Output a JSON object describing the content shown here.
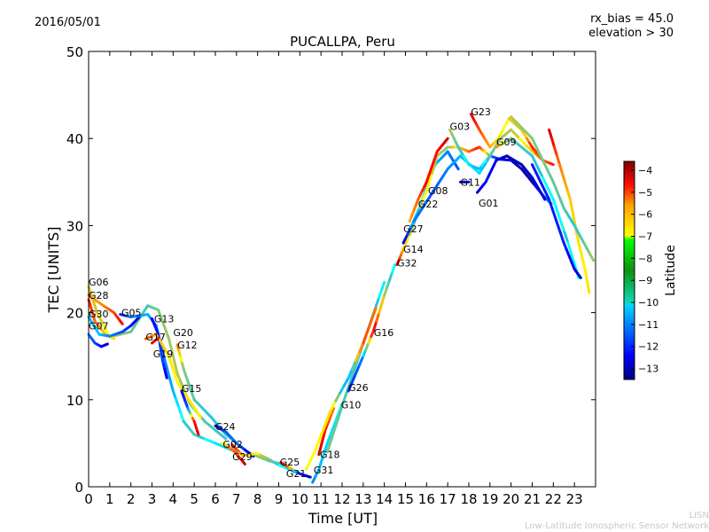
{
  "header": {
    "date": "2016/05/01",
    "rx_bias": "rx_bias = 45.0",
    "elevation": "elevation > 30"
  },
  "footer": {
    "org_short": "LISN",
    "org_long": "Low-Latitude Ionospheric Sensor Network"
  },
  "chart_data": {
    "type": "line",
    "title": "PUCALLPA, Peru",
    "xlabel": "Time [UT]",
    "ylabel": "TEC [UNITS]",
    "xlim": [
      0,
      24
    ],
    "ylim": [
      0,
      50
    ],
    "xticks": [
      0,
      1,
      2,
      3,
      4,
      5,
      6,
      7,
      8,
      9,
      10,
      11,
      12,
      13,
      14,
      15,
      16,
      17,
      18,
      19,
      20,
      21,
      22,
      23
    ],
    "yticks": [
      0,
      10,
      20,
      30,
      40,
      50
    ],
    "colorbar": {
      "label": "Latitude",
      "range": [
        -13.5,
        -3.6
      ],
      "ticks": [
        -4,
        -5,
        -6,
        -7,
        -8,
        -9,
        -10,
        -11,
        -12,
        -13
      ]
    },
    "labels": [
      {
        "text": "G06",
        "t": 0,
        "tec": 23.5
      },
      {
        "text": "G28",
        "t": 0,
        "tec": 22.0
      },
      {
        "text": "G30",
        "t": 0,
        "tec": 21.2
      },
      {
        "text": "G07",
        "t": 0,
        "tec": 18.5
      },
      {
        "text": "G05",
        "t": 1.55,
        "tec": 20.0
      },
      {
        "text": "G13",
        "t": 3.1,
        "tec": 19.3
      },
      {
        "text": "G17",
        "t": 2.7,
        "tec": 17.2
      },
      {
        "text": "G19",
        "t": 3.05,
        "tec": 16.6
      },
      {
        "text": "G20",
        "t": 4.0,
        "tec": 16.4
      },
      {
        "text": "G12",
        "t": 4.2,
        "tec": 16.3
      },
      {
        "text": "G15",
        "t": 4.4,
        "tec": 11.3
      },
      {
        "text": "G24",
        "t": 6.0,
        "tec": 6.9
      },
      {
        "text": "G02",
        "t": 6.35,
        "tec": 4.9
      },
      {
        "text": "G29",
        "t": 6.8,
        "tec": 4.8
      },
      {
        "text": "G25",
        "t": 9.05,
        "tec": 2.85
      },
      {
        "text": "G21",
        "t": 9.35,
        "tec": 2.85
      },
      {
        "text": "G31",
        "t": 10.65,
        "tec": 0.6
      },
      {
        "text": "G18",
        "t": 10.95,
        "tec": 3.7
      },
      {
        "text": "G10",
        "t": 11.95,
        "tec": 9.4
      },
      {
        "text": "G26",
        "t": 12.3,
        "tec": 11.4
      },
      {
        "text": "G16",
        "t": 13.5,
        "tec": 17.7
      },
      {
        "text": "G32",
        "t": 14.6,
        "tec": 25.7
      },
      {
        "text": "G14",
        "t": 14.9,
        "tec": 27.3
      },
      {
        "text": "G27",
        "t": 14.9,
        "tec": 28.3
      },
      {
        "text": "G22",
        "t": 15.6,
        "tec": 32.5
      },
      {
        "text": "G08",
        "t": 16.07,
        "tec": 32.7
      },
      {
        "text": "G11",
        "t": 17.6,
        "tec": 35.0
      },
      {
        "text": "G01",
        "t": 18.46,
        "tec": 33.9
      },
      {
        "text": "G03",
        "t": 17.1,
        "tec": 41.4
      },
      {
        "text": "G23",
        "t": 18.1,
        "tec": 43.1
      },
      {
        "text": "G09",
        "t": 19.3,
        "tec": 39.6
      }
    ],
    "tracks": [
      [
        [
          0,
          23,
          -7.6
        ],
        [
          0.4,
          20,
          -7.8
        ],
        [
          1,
          17.2,
          -7.3
        ],
        [
          1.5,
          17.5,
          -8.2
        ],
        [
          2,
          17.8,
          -8.8
        ],
        [
          2.8,
          20.8,
          -9.2
        ],
        [
          3.3,
          20.3,
          -8.6
        ],
        [
          3.8,
          17,
          -8.2
        ],
        [
          4.2,
          13,
          -8
        ],
        [
          4.8,
          9.5,
          -8.5
        ],
        [
          5.5,
          7.5,
          -9
        ],
        [
          6.5,
          5.5,
          -9.3
        ]
      ],
      [
        [
          0,
          22,
          -6.5
        ],
        [
          0.7,
          20.8,
          -6.2
        ],
        [
          1.2,
          20,
          -5.5
        ],
        [
          1.6,
          18.7,
          -4.8
        ]
      ],
      [
        [
          0,
          21.5,
          -5
        ],
        [
          0.3,
          19,
          -5.8
        ],
        [
          0.8,
          17.5,
          -6.8
        ],
        [
          1.2,
          17,
          -7
        ]
      ],
      [
        [
          0,
          19.5,
          -10.5
        ],
        [
          0.5,
          17.5,
          -10.3
        ],
        [
          1,
          17.3,
          -11
        ],
        [
          1.6,
          17.8,
          -11.5
        ],
        [
          2,
          18.5,
          -12
        ],
        [
          2.4,
          19.5,
          -12.8
        ]
      ],
      [
        [
          0,
          17.5,
          -11
        ],
        [
          0.3,
          16.5,
          -11.5
        ],
        [
          0.6,
          16.1,
          -12.2
        ],
        [
          0.9,
          16.4,
          -12.8
        ]
      ],
      [
        [
          1.5,
          19.8,
          -12
        ],
        [
          2,
          19.5,
          -11.2
        ],
        [
          2.8,
          19.8,
          -10.5
        ],
        [
          3.2,
          18.5,
          -11
        ],
        [
          3.5,
          15.5,
          -11.2
        ],
        [
          4,
          11,
          -10.5
        ],
        [
          4.5,
          7.5,
          -9.5
        ],
        [
          5,
          6,
          -9
        ],
        [
          6,
          5,
          -10
        ],
        [
          7,
          4,
          -10.5
        ]
      ],
      [
        [
          3,
          19.3,
          -12.5
        ],
        [
          3.3,
          17.5,
          -12
        ],
        [
          3.5,
          14.5,
          -11.5
        ],
        [
          3.7,
          12.5,
          -12.8
        ]
      ],
      [
        [
          2.7,
          17,
          -5.5
        ],
        [
          3.2,
          17.5,
          -6.5
        ],
        [
          3.8,
          15,
          -7
        ],
        [
          4.2,
          12,
          -7.3
        ],
        [
          4.8,
          9.8,
          -7
        ],
        [
          5.3,
          8,
          -7.2
        ]
      ],
      [
        [
          3.0,
          16.5,
          -4.5
        ],
        [
          3.3,
          17.1,
          -5.2
        ]
      ],
      [
        [
          4.2,
          16.3,
          -5.8
        ],
        [
          4.5,
          13.5,
          -8.5
        ],
        [
          5,
          10,
          -9
        ],
        [
          5.8,
          8,
          -9.5
        ],
        [
          6.5,
          6,
          -9.3
        ],
        [
          7.5,
          4,
          -8.8
        ],
        [
          8.5,
          3,
          -8.5
        ],
        [
          9.3,
          2.5,
          -9
        ]
      ],
      [
        [
          4.4,
          11,
          -12.5
        ],
        [
          4.7,
          9,
          -11.5
        ],
        [
          5,
          7.5,
          -5
        ],
        [
          5.2,
          6,
          -4.5
        ]
      ],
      [
        [
          6,
          7,
          -12.8
        ],
        [
          6.5,
          6.3,
          -11.5
        ],
        [
          7,
          5,
          -11
        ],
        [
          7.8,
          3.5,
          -12.8
        ]
      ],
      [
        [
          6.3,
          5,
          -7.5
        ],
        [
          6.8,
          4.3,
          -6
        ],
        [
          7.2,
          3.2,
          -5.2
        ],
        [
          7.4,
          2.6,
          -4.2
        ]
      ],
      [
        [
          6.8,
          4.8,
          -4.5
        ],
        [
          7.3,
          3.6,
          -6.5
        ],
        [
          8,
          3.8,
          -7.2
        ],
        [
          8.5,
          3.2,
          -8.5
        ],
        [
          9,
          2.5,
          -9.5
        ],
        [
          9.5,
          2,
          -10
        ],
        [
          10,
          1.5,
          -12
        ]
      ],
      [
        [
          9.1,
          2.8,
          -4.5
        ],
        [
          9.5,
          2.2,
          -5.8
        ],
        [
          10,
          1.5,
          -12
        ],
        [
          10.5,
          1.1,
          -12.8
        ]
      ],
      [
        [
          10.6,
          0.5,
          -11
        ],
        [
          10.9,
          2,
          -10.5
        ],
        [
          11.3,
          5,
          -10.2
        ],
        [
          12,
          9.5,
          -9.8
        ]
      ],
      [
        [
          10.9,
          3.7,
          -4.3
        ],
        [
          11.2,
          6.5,
          -5
        ],
        [
          11.6,
          9,
          -6
        ]
      ],
      [
        [
          11.3,
          4,
          -8.5
        ],
        [
          11.7,
          7,
          -8.8
        ],
        [
          12.1,
          10,
          -9
        ],
        [
          12.8,
          15,
          -9
        ],
        [
          13.5,
          20,
          -9.2
        ],
        [
          14,
          23.5,
          -10
        ]
      ],
      [
        [
          10.3,
          2,
          -7.5
        ],
        [
          10.7,
          4,
          -7.3
        ],
        [
          11.5,
          9,
          -7
        ],
        [
          12.3,
          12.5,
          -11
        ],
        [
          13,
          16.5,
          -5.5
        ],
        [
          13.6,
          20.5,
          -6
        ]
      ],
      [
        [
          12.3,
          11,
          -12
        ],
        [
          13,
          15,
          -11
        ],
        [
          13.5,
          18,
          -4.5
        ],
        [
          14,
          22,
          -8
        ],
        [
          14.5,
          25.5,
          -10
        ]
      ],
      [
        [
          14.6,
          25.5,
          -4.5
        ],
        [
          14.9,
          27.3,
          -6.5
        ],
        [
          15.3,
          29.5,
          -8
        ],
        [
          15.8,
          33,
          -10
        ],
        [
          16.4,
          37,
          -10.5
        ],
        [
          17,
          38.5,
          -11
        ],
        [
          17.5,
          36.5,
          -11.5
        ]
      ],
      [
        [
          14.9,
          28,
          -12.8
        ],
        [
          15.3,
          30,
          -11
        ],
        [
          16,
          34,
          -7
        ],
        [
          16.5,
          38,
          -8
        ],
        [
          17,
          39,
          -8.5
        ],
        [
          17.5,
          39,
          -7
        ],
        [
          18,
          38.5,
          -6
        ],
        [
          18.5,
          39,
          -5
        ],
        [
          19,
          38,
          -8.5
        ]
      ],
      [
        [
          15.2,
          30.5,
          -6.5
        ],
        [
          15.6,
          33,
          -5.8
        ],
        [
          16,
          35,
          -4.8
        ],
        [
          16.5,
          38.5,
          -5
        ],
        [
          17,
          40,
          -4.3
        ]
      ],
      [
        [
          15.4,
          30.5,
          -11
        ],
        [
          16.2,
          33.5,
          -11.5
        ],
        [
          17,
          36.5,
          -11
        ],
        [
          17.6,
          38,
          -10.5
        ],
        [
          18.5,
          36,
          -10
        ],
        [
          19,
          38,
          -11
        ],
        [
          19.5,
          37.6,
          -12
        ],
        [
          20,
          37.5,
          -12.5
        ],
        [
          20.5,
          36.5,
          -13
        ],
        [
          21,
          35,
          -13
        ],
        [
          21.5,
          33.5,
          -11.5
        ],
        [
          21.9,
          32.5,
          -11
        ]
      ],
      [
        [
          17.6,
          35,
          -13
        ],
        [
          18.0,
          35,
          -12.5
        ]
      ],
      [
        [
          18.4,
          33.8,
          -13
        ],
        [
          18.8,
          35,
          -12
        ],
        [
          19.3,
          37.5,
          -12.5
        ],
        [
          19.8,
          38,
          -13
        ],
        [
          20.5,
          37,
          -13
        ],
        [
          21,
          35.5,
          -12.8
        ],
        [
          21.6,
          33,
          -12.5
        ]
      ],
      [
        [
          17.1,
          41,
          -8
        ],
        [
          17.5,
          39,
          -9
        ],
        [
          18,
          37,
          -10
        ],
        [
          18.5,
          36.5,
          -10.5
        ],
        [
          19,
          38,
          -9
        ],
        [
          19.5,
          40,
          -8.5
        ],
        [
          20,
          41,
          -8
        ],
        [
          20.8,
          39,
          -7
        ],
        [
          21.5,
          37.5,
          -6
        ],
        [
          22,
          37,
          -5
        ]
      ],
      [
        [
          18.1,
          42.8,
          -4.5
        ],
        [
          18.5,
          41,
          -5.5
        ],
        [
          19,
          39,
          -6.5
        ],
        [
          19.4,
          40,
          -7
        ],
        [
          19.9,
          42.3,
          -7.5
        ],
        [
          20.5,
          41,
          -8
        ],
        [
          21,
          39,
          -5
        ],
        [
          21.5,
          37.5,
          -6
        ]
      ],
      [
        [
          19.3,
          39,
          -6
        ],
        [
          20,
          40,
          -9
        ],
        [
          21,
          38,
          -9.3
        ],
        [
          22,
          33,
          -9.8
        ],
        [
          22.7,
          28,
          -9.5
        ],
        [
          23.2,
          24,
          -10
        ]
      ],
      [
        [
          21.8,
          41,
          -4.2
        ],
        [
          22.3,
          37,
          -6
        ],
        [
          22.8,
          33,
          -6.8
        ],
        [
          23.2,
          28,
          -7
        ],
        [
          23.5,
          25,
          -7.2
        ],
        [
          23.7,
          22.3,
          -7
        ]
      ],
      [
        [
          20,
          42.5,
          -8
        ],
        [
          21,
          40,
          -8.5
        ],
        [
          22,
          35,
          -8.8
        ],
        [
          22.5,
          32,
          -9
        ],
        [
          23,
          30,
          -9.5
        ],
        [
          23.9,
          26,
          -8.2
        ]
      ],
      [
        [
          21,
          37,
          -12
        ],
        [
          21.8,
          33,
          -12
        ],
        [
          22.5,
          28,
          -12
        ],
        [
          23,
          25,
          -12.5
        ],
        [
          23.3,
          24,
          -12.8
        ]
      ]
    ]
  }
}
